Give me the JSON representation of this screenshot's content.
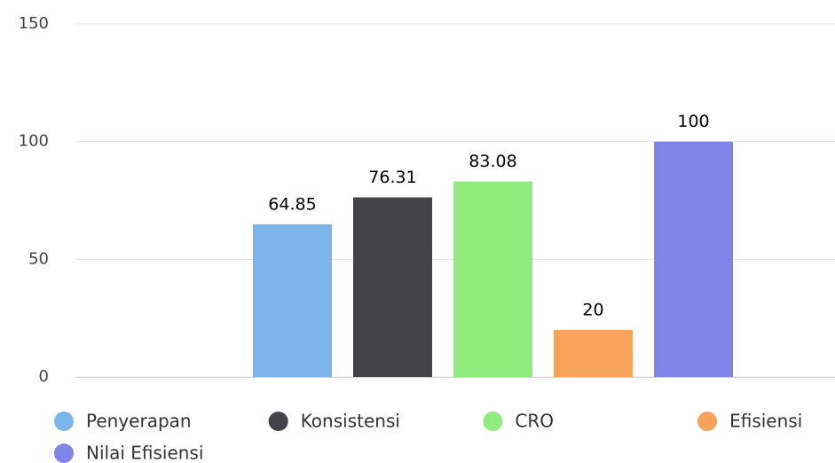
{
  "chart_data": {
    "type": "bar",
    "categories": [
      null
    ],
    "series": [
      {
        "name": "Penyerapan",
        "color": "#7cb5ec",
        "values": [
          64.85
        ]
      },
      {
        "name": "Konsistensi",
        "color": "#434348",
        "values": [
          76.31
        ]
      },
      {
        "name": "CRO",
        "color": "#90ed7d",
        "values": [
          83.08
        ]
      },
      {
        "name": "Efisiensi",
        "color": "#f7a35c",
        "values": [
          20
        ]
      },
      {
        "name": "Nilai Efisiensi",
        "color": "#8085e9",
        "values": [
          100
        ]
      }
    ],
    "ylim": [
      0,
      150
    ],
    "yticks": [
      0,
      50,
      100,
      150
    ],
    "grid": true
  }
}
